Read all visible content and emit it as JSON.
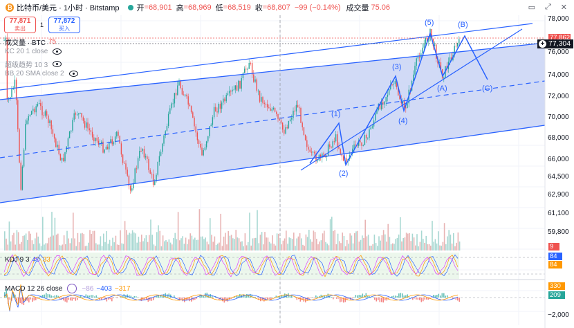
{
  "header": {
    "symbol": "比特币/美元 · 1小时 · Bitstamp",
    "coin_glyph": "₿",
    "open_label": "开",
    "open": "=68,901",
    "high_label": "高",
    "high": "=68,969",
    "low_label": "低",
    "low": "=68,519",
    "close_label": "收",
    "close": "=68,807",
    "change": "−99 (−0.14%)",
    "volume_label": "成交量",
    "volume": "75.06"
  },
  "trade": {
    "sell_price": "77,871",
    "sell_label": "卖出",
    "spread": "1",
    "buy_price": "77,872",
    "buy_label": "买入"
  },
  "indicators": {
    "volume": {
      "label": "成交量 · BTC",
      "value": "75"
    },
    "kc": {
      "label": "KC 20 1 close"
    },
    "trend": {
      "label": "超级趋势 10 3"
    },
    "bb": {
      "label": "BB 20 SMA close 2"
    },
    "kdj": {
      "label": "KDJ 9 3",
      "v1": "40",
      "v2": "33"
    },
    "macd": {
      "label": "MACD 12 26 close",
      "v1": "−86",
      "v2": "−403",
      "v3": "−317"
    }
  },
  "price_axis": [
    "78,000",
    "76,000",
    "74,000",
    "72,000",
    "70,000",
    "68,000",
    "66,000",
    "64,500",
    "62,900",
    "61,100",
    "59,800"
  ],
  "axis_tags": {
    "top_price": "77,862",
    "last_price": "77,304",
    "vol_tag": "9",
    "kdj_k": "84",
    "kdj_d": "84",
    "macd_a": "330",
    "macd_b": "209",
    "macd_axis": "−2,000"
  },
  "wave_labels": [
    "(1)",
    "(2)",
    "(3)",
    "(4)",
    "(5)",
    "(A)",
    "(B)",
    "(C)"
  ],
  "colors": {
    "up": "#26a69a",
    "down": "#ef5350",
    "channel": "#2962ff",
    "channel_fill": "#c9d4f5"
  }
}
